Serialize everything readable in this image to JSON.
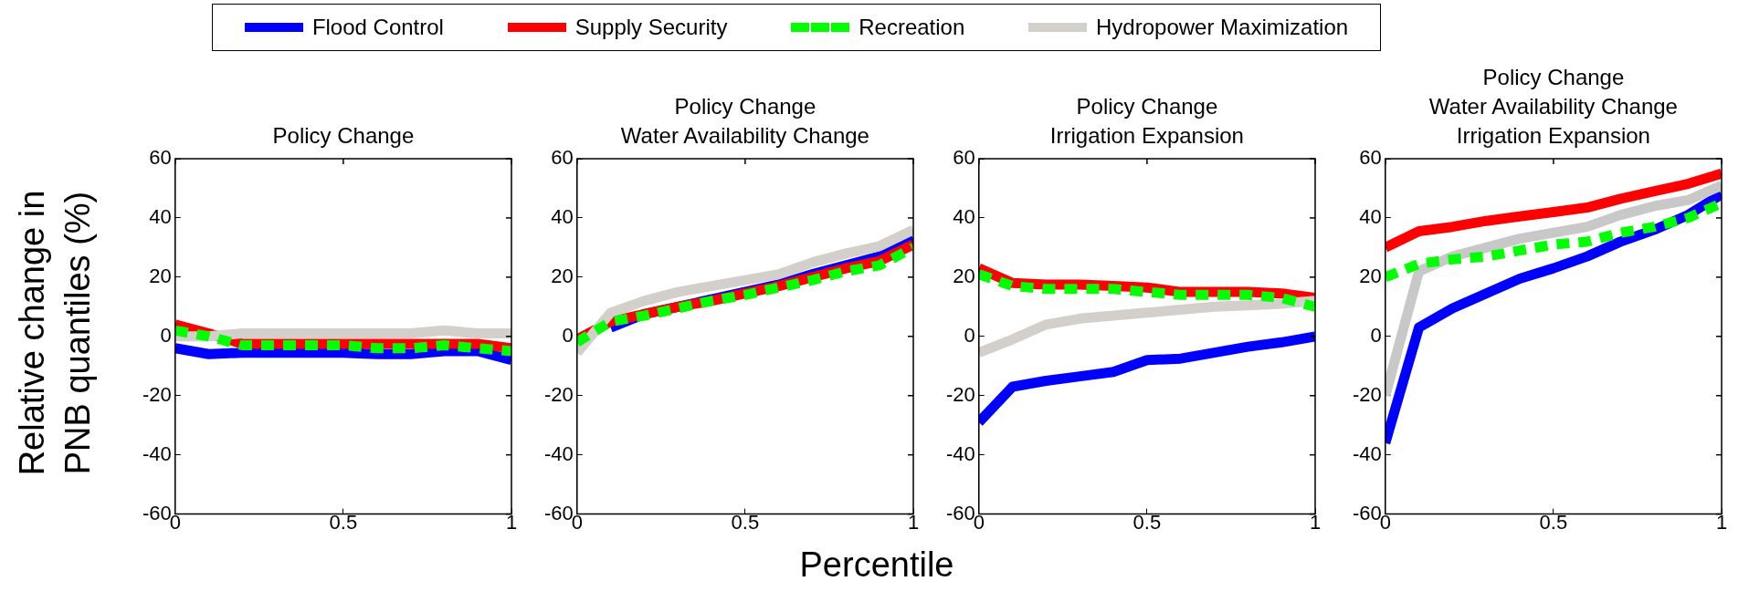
{
  "chart_data": [
    {
      "type": "line",
      "title": "Policy Change",
      "ylabel": "Relative change in\nPNB quantiles (%)",
      "legend": "top",
      "grid": false,
      "marker": "none",
      "xlim": [
        0,
        1
      ],
      "xticks": [
        0,
        0.5,
        1
      ],
      "ylim": [
        -60,
        60
      ],
      "yticks": [
        -60,
        -40,
        -20,
        0,
        20,
        40,
        60
      ],
      "x": [
        0,
        0.1,
        0.2,
        0.3,
        0.4,
        0.5,
        0.6,
        0.7,
        0.8,
        0.9,
        1
      ],
      "series": [
        {
          "name": "Flood Control",
          "color": "#0000ff",
          "line_style": "solid",
          "values": [
            -4,
            -6,
            -5.5,
            -5.5,
            -5.5,
            -5.5,
            -6,
            -6,
            -5,
            -5,
            -8
          ]
        },
        {
          "name": "Supply Security",
          "color": "#ff0000",
          "line_style": "solid",
          "values": [
            4,
            1,
            -2.5,
            -2.5,
            -2.5,
            -2.5,
            -2.5,
            -2.5,
            -2.5,
            -2.5,
            -4
          ]
        },
        {
          "name": "Recreation",
          "color": "#00ff00",
          "line_style": "dashed",
          "values": [
            2,
            0,
            -3,
            -3,
            -3,
            -3,
            -4,
            -4,
            -3,
            -4,
            -5
          ]
        },
        {
          "name": "Hydropower Maximization",
          "color": "#d3d0cb",
          "line_style": "solid",
          "values": [
            0,
            0,
            1,
            1,
            1,
            1,
            1,
            1,
            2,
            1,
            1
          ]
        }
      ]
    },
    {
      "type": "line",
      "title": "Policy Change\nWater Availability Change",
      "xlabel": "Percentile",
      "grid": false,
      "marker": "none",
      "xlim": [
        0,
        1
      ],
      "xticks": [
        0,
        0.5,
        1
      ],
      "ylim": [
        -60,
        60
      ],
      "yticks": [
        -60,
        -40,
        -20,
        0,
        20,
        40,
        60
      ],
      "x": [
        0,
        0.1,
        0.2,
        0.3,
        0.4,
        0.5,
        0.6,
        0.7,
        0.8,
        0.9,
        1
      ],
      "series": [
        {
          "color": "#0000ff",
          "line_style": "solid",
          "values": [
            null,
            3,
            7.5,
            null,
            null,
            null,
            17.5,
            21,
            24,
            27,
            33
          ]
        },
        {
          "color": "#ff0000",
          "line_style": "solid",
          "values": [
            -1,
            5,
            7.5,
            10,
            12,
            14.5,
            17,
            20,
            23,
            25.5,
            31
          ]
        },
        {
          "color": "#00ff00",
          "line_style": "dashed",
          "values": [
            -2,
            5,
            7,
            9.5,
            12,
            14,
            16.5,
            19,
            22,
            24,
            30
          ]
        },
        {
          "color": "#d3d0cb",
          "line_style": "solid",
          "values": [
            -5.5,
            8,
            12,
            15,
            17,
            19,
            21,
            25,
            28,
            30.5,
            36
          ]
        }
      ]
    },
    {
      "type": "line",
      "title": "Policy Change\nIrrigation Expansion",
      "grid": false,
      "marker": "none",
      "xlim": [
        0,
        1
      ],
      "xticks": [
        0,
        0.5,
        1
      ],
      "ylim": [
        -60,
        60
      ],
      "yticks": [
        -60,
        -40,
        -20,
        0,
        20,
        40,
        60
      ],
      "x": [
        0,
        0.1,
        0.2,
        0.3,
        0.4,
        0.5,
        0.6,
        0.7,
        0.8,
        0.9,
        1
      ],
      "series": [
        {
          "color": "#0000ff",
          "line_style": "solid",
          "values": [
            -29,
            -17,
            -15,
            -13.5,
            -12,
            -8,
            -7.5,
            -5.5,
            -3.5,
            -2,
            0
          ]
        },
        {
          "color": "#ff0000",
          "line_style": "solid",
          "values": [
            23,
            18,
            17.5,
            17.5,
            17,
            16.5,
            15,
            15,
            15,
            14.5,
            13
          ]
        },
        {
          "color": "#00ff00",
          "line_style": "dashed",
          "values": [
            21,
            17,
            16,
            16,
            16,
            15,
            14,
            14,
            14,
            13,
            10
          ]
        },
        {
          "color": "#d3d0cb",
          "line_style": "solid",
          "values": [
            -5.5,
            -1,
            4,
            6,
            7,
            8,
            9,
            10,
            10.5,
            11,
            12
          ]
        }
      ]
    },
    {
      "type": "line",
      "title": "Policy Change\nWater Availability Change\nIrrigation Expansion",
      "grid": false,
      "marker": "none",
      "xlim": [
        0,
        1
      ],
      "xticks": [
        0,
        0.5,
        1
      ],
      "ylim": [
        -60,
        60
      ],
      "yticks": [
        -60,
        -40,
        -20,
        0,
        20,
        40,
        60
      ],
      "x": [
        0,
        0.1,
        0.2,
        0.3,
        0.4,
        0.5,
        0.6,
        0.7,
        0.8,
        0.9,
        1
      ],
      "series": [
        {
          "color": "#0000ff",
          "line_style": "solid",
          "values": [
            -36,
            3,
            9.5,
            14.5,
            19.5,
            23,
            27,
            32,
            36,
            41,
            48
          ]
        },
        {
          "color": "#ff0000",
          "line_style": "solid",
          "values": [
            30,
            35.5,
            37,
            39,
            40.5,
            42,
            43.5,
            46.5,
            49,
            51.5,
            55
          ]
        },
        {
          "color": "#00ff00",
          "line_style": "dashed",
          "values": [
            20,
            24.5,
            26,
            27,
            29,
            31,
            32,
            35,
            37,
            40,
            45
          ]
        },
        {
          "color": "#c8c8c8",
          "line_style": "solid",
          "values": [
            -20,
            22,
            27,
            30,
            33,
            35,
            37,
            41,
            44,
            46,
            51
          ]
        }
      ]
    }
  ]
}
